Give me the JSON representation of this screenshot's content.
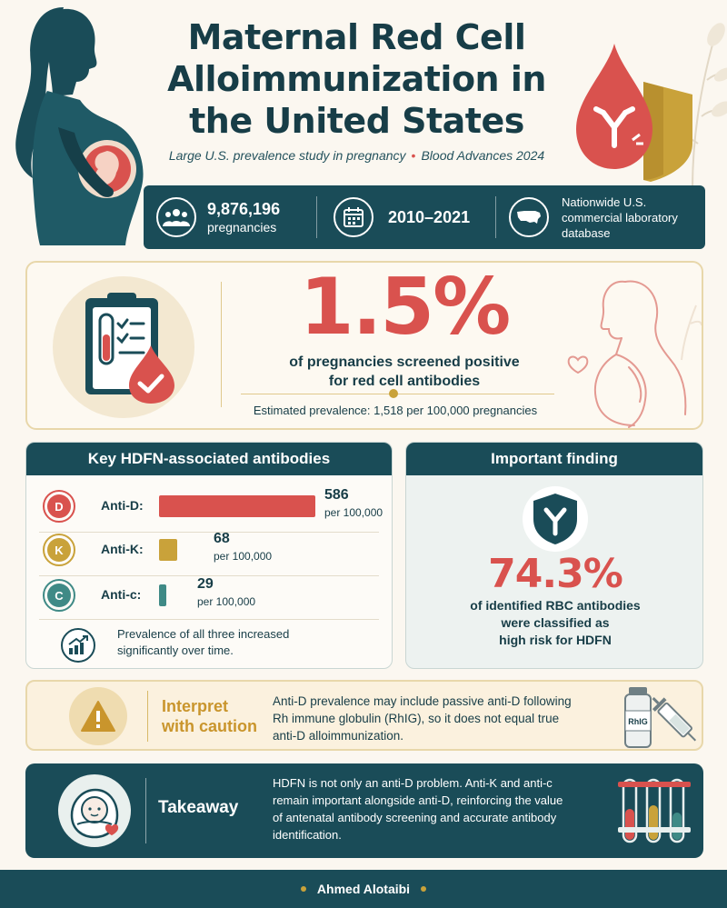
{
  "header": {
    "title_lines": [
      "Maternal Red Cell",
      "Alloimmunization in",
      "the United States"
    ],
    "subtitle_left": "Large U.S. prevalence study in pregnancy",
    "subtitle_separator": "•",
    "subtitle_right": "Blood Advances 2024"
  },
  "stats": {
    "pregnancies_value": "9,876,196",
    "pregnancies_label": "pregnancies",
    "years": "2010–2021",
    "database_lines": [
      "Nationwide U.S.",
      "commercial laboratory",
      "database"
    ]
  },
  "prevalence": {
    "percent": "1.5%",
    "description_lines": [
      "of pregnancies screened positive",
      "for red cell antibodies"
    ],
    "estimate": "Estimated prevalence: 1,518 per 100,000 pregnancies"
  },
  "antibodies": {
    "heading": "Key HDFN-associated antibodies",
    "unit": "per 100,000",
    "items": [
      {
        "badge": "D",
        "name": "Anti-D:",
        "value": "586",
        "color": "#d9524e",
        "fraction": 1.0
      },
      {
        "badge": "K",
        "name": "Anti-K:",
        "value": "68",
        "color": "#c9a23a",
        "fraction": 0.116
      },
      {
        "badge": "C",
        "name": "Anti-c:",
        "value": "29",
        "color": "#3f8a86",
        "fraction": 0.049
      }
    ],
    "trend_lines": [
      "Prevalence of all three increased",
      "significantly over time."
    ]
  },
  "finding": {
    "heading": "Important finding",
    "percent": "74.3%",
    "description_lines": [
      "of identified RBC antibodies",
      "were classified as",
      "high risk for HDFN"
    ]
  },
  "caution": {
    "heading_lines": [
      "Interpret",
      "with caution"
    ],
    "text_lines": [
      "Anti-D prevalence may include passive anti-D following",
      "Rh immune globulin (RhIG), so it does not equal true",
      "anti-D alloimmunization."
    ],
    "vial_label": "RhIG"
  },
  "takeaway": {
    "heading": "Takeaway",
    "text_lines": [
      "HDFN is not only an anti-D problem. Anti-K and anti-c",
      "remain important alongside anti-D, reinforcing the value",
      "of antenatal antibody screening and accurate antibody",
      "identification."
    ]
  },
  "footer": {
    "author": "Ahmed Alotaibi"
  },
  "colors": {
    "teal": "#1a4c58",
    "red": "#d9524e",
    "gold": "#c9a23a",
    "sea": "#3f8a86"
  },
  "icons": [
    "pregnant-woman-illustration",
    "blood-drop-antibody-icon",
    "shield-icon",
    "people-icon",
    "calendar-icon",
    "us-map-icon",
    "clipboard-test-tube-icon",
    "blood-drop-check-icon",
    "woman-outline-illustration",
    "trend-up-icon",
    "antibody-shield-icon",
    "warning-icon",
    "rhig-vial-syringe-icon",
    "baby-icon",
    "heart-icon",
    "test-tubes-icon"
  ]
}
